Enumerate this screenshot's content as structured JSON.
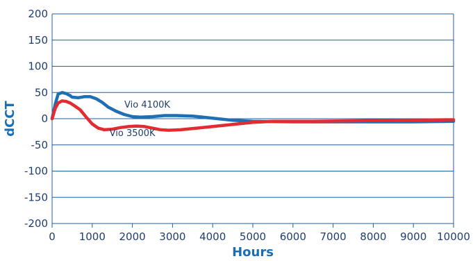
{
  "chart_data": {
    "type": "line",
    "title": "",
    "xlabel": "Hours",
    "ylabel": "dCCT",
    "xlim": [
      0,
      10000
    ],
    "ylim": [
      -200,
      200
    ],
    "grid": "horizontal",
    "xticks": [
      0,
      1000,
      2000,
      3000,
      4000,
      5000,
      6000,
      7000,
      8000,
      9000,
      10000
    ],
    "yticks": [
      200,
      150,
      100,
      50,
      0,
      -50,
      -100,
      -150,
      -200
    ],
    "series": [
      {
        "name": "Vio 4100K",
        "color": "#1f6fb5",
        "points": [
          [
            0,
            0
          ],
          [
            80,
            28
          ],
          [
            150,
            47
          ],
          [
            250,
            50
          ],
          [
            350,
            48
          ],
          [
            450,
            44
          ],
          [
            500,
            41
          ],
          [
            650,
            40
          ],
          [
            800,
            42
          ],
          [
            950,
            42
          ],
          [
            1100,
            38
          ],
          [
            1250,
            31
          ],
          [
            1400,
            22
          ],
          [
            1600,
            14
          ],
          [
            1800,
            8
          ],
          [
            2000,
            4
          ],
          [
            2200,
            3
          ],
          [
            2500,
            4
          ],
          [
            2800,
            6
          ],
          [
            3100,
            6
          ],
          [
            3500,
            5
          ],
          [
            4000,
            1
          ],
          [
            4500,
            -3
          ],
          [
            5000,
            -5
          ],
          [
            6000,
            -6
          ],
          [
            7000,
            -6
          ],
          [
            8000,
            -6
          ],
          [
            9000,
            -6
          ],
          [
            10000,
            -5
          ]
        ]
      },
      {
        "name": "Vio 3500K",
        "color": "#e32b32",
        "points": [
          [
            0,
            0
          ],
          [
            80,
            20
          ],
          [
            150,
            30
          ],
          [
            250,
            34
          ],
          [
            350,
            33
          ],
          [
            450,
            30
          ],
          [
            550,
            25
          ],
          [
            700,
            17
          ],
          [
            850,
            3
          ],
          [
            1000,
            -10
          ],
          [
            1150,
            -18
          ],
          [
            1300,
            -21
          ],
          [
            1500,
            -20
          ],
          [
            1700,
            -17
          ],
          [
            1900,
            -15
          ],
          [
            2100,
            -14
          ],
          [
            2300,
            -15
          ],
          [
            2500,
            -18
          ],
          [
            2700,
            -21
          ],
          [
            2900,
            -22
          ],
          [
            3200,
            -21
          ],
          [
            3600,
            -18
          ],
          [
            4000,
            -15
          ],
          [
            4500,
            -11
          ],
          [
            5000,
            -7
          ],
          [
            5500,
            -5
          ],
          [
            6500,
            -5
          ],
          [
            7500,
            -4
          ],
          [
            8500,
            -3
          ],
          [
            10000,
            -2
          ]
        ]
      }
    ],
    "annotations": [
      {
        "text": "Vio 4100K",
        "x": 1800,
        "y": 21
      },
      {
        "text": "Vio 3500K",
        "x": 1430,
        "y": -33
      }
    ]
  }
}
